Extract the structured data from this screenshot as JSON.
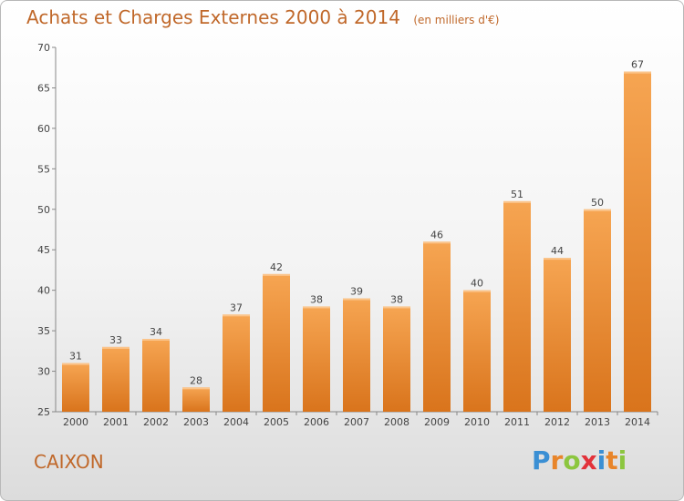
{
  "chart_data": {
    "type": "bar",
    "title": "Achats et Charges Externes 2000 à 2014",
    "subtitle": "(en milliers d'€)",
    "categories": [
      "2000",
      "2001",
      "2002",
      "2003",
      "2004",
      "2005",
      "2006",
      "2007",
      "2008",
      "2009",
      "2010",
      "2011",
      "2012",
      "2013",
      "2014"
    ],
    "values": [
      31,
      33,
      34,
      28,
      37,
      42,
      38,
      39,
      38,
      46,
      40,
      51,
      44,
      50,
      67
    ],
    "ylim": [
      25,
      70
    ],
    "yticks": [
      25,
      30,
      35,
      40,
      45,
      50,
      55,
      60,
      65,
      70
    ],
    "grid": false,
    "bar_color": "#f0923a"
  },
  "footer": {
    "commune": "CAIXON",
    "logo": {
      "letters": [
        "P",
        "r",
        "o",
        "x",
        "i",
        "t",
        "i"
      ],
      "colors": [
        "#3a8fd4",
        "#e8852a",
        "#8cc63f",
        "#e2323a",
        "#3a8fd4",
        "#e8852a",
        "#8cc63f"
      ]
    }
  }
}
